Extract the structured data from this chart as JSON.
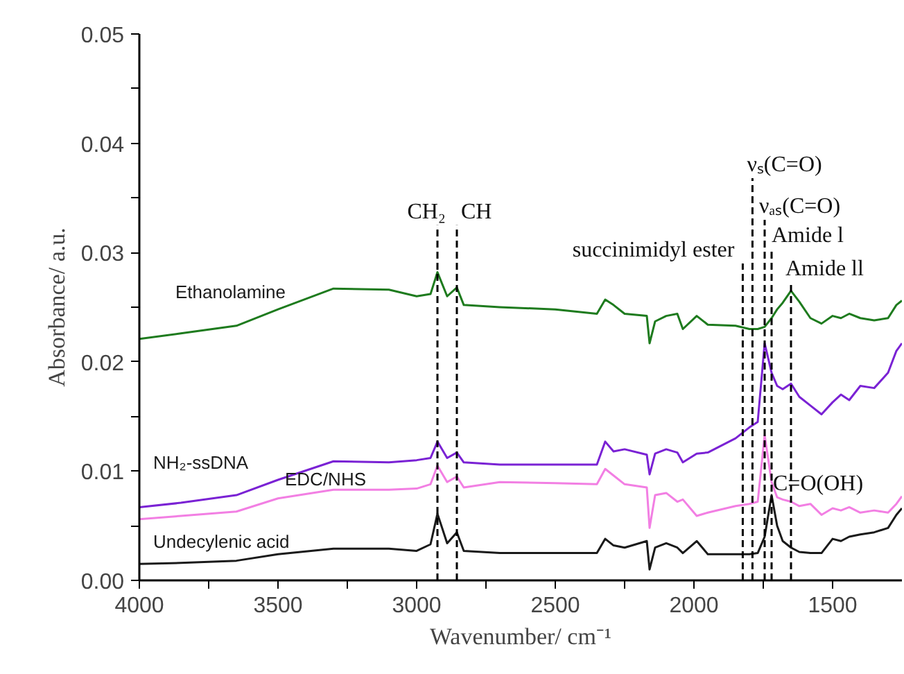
{
  "chart_data": {
    "type": "line",
    "xlabel": "Wavenumber/ cm⁻¹",
    "ylabel": "Absorbance/ a.u.",
    "x": [
      4000,
      3850,
      3650,
      3500,
      3300,
      3100,
      3000,
      2950,
      2925,
      2890,
      2855,
      2830,
      2700,
      2500,
      2350,
      2320,
      2290,
      2250,
      2170,
      2160,
      2140,
      2100,
      2060,
      2040,
      1990,
      1950,
      1850,
      1800,
      1770,
      1745,
      1720,
      1700,
      1680,
      1650,
      1620,
      1580,
      1540,
      1500,
      1470,
      1440,
      1400,
      1350,
      1300,
      1270,
      1250
    ],
    "series": [
      {
        "name": "Ethanolamine",
        "color": "#1e7b1e",
        "values": [
          0.0221,
          0.0226,
          0.0233,
          0.0248,
          0.0267,
          0.0266,
          0.026,
          0.0262,
          0.0282,
          0.026,
          0.0268,
          0.0252,
          0.025,
          0.0248,
          0.0244,
          0.0257,
          0.0252,
          0.0244,
          0.0242,
          0.0217,
          0.0237,
          0.0242,
          0.0244,
          0.023,
          0.0242,
          0.0234,
          0.0233,
          0.023,
          0.023,
          0.0232,
          0.024,
          0.0248,
          0.0254,
          0.0265,
          0.0255,
          0.024,
          0.0235,
          0.0242,
          0.024,
          0.0244,
          0.024,
          0.0238,
          0.024,
          0.0252,
          0.0256
        ]
      },
      {
        "name": "NH₂-ssDNA",
        "color": "#7a22d4",
        "values": [
          0.0067,
          0.0071,
          0.0078,
          0.0092,
          0.0109,
          0.0108,
          0.011,
          0.0112,
          0.0127,
          0.0112,
          0.0117,
          0.0108,
          0.0106,
          0.0106,
          0.0106,
          0.0127,
          0.0118,
          0.012,
          0.0115,
          0.0097,
          0.0116,
          0.012,
          0.0117,
          0.0108,
          0.0116,
          0.0117,
          0.013,
          0.014,
          0.0145,
          0.0217,
          0.019,
          0.0178,
          0.0175,
          0.018,
          0.0168,
          0.016,
          0.0152,
          0.0163,
          0.017,
          0.0165,
          0.0178,
          0.0176,
          0.019,
          0.021,
          0.0217
        ]
      },
      {
        "name": "EDC/NHS",
        "color": "#f27fe3",
        "values": [
          0.0056,
          0.0059,
          0.0063,
          0.0075,
          0.0083,
          0.0083,
          0.0084,
          0.0088,
          0.0105,
          0.009,
          0.0095,
          0.0085,
          0.009,
          0.0089,
          0.0088,
          0.0102,
          0.0096,
          0.0088,
          0.0085,
          0.0048,
          0.0078,
          0.008,
          0.0072,
          0.0074,
          0.0059,
          0.0062,
          0.0068,
          0.007,
          0.0072,
          0.0133,
          0.009,
          0.0076,
          0.0074,
          0.0072,
          0.0068,
          0.007,
          0.006,
          0.0066,
          0.0064,
          0.0067,
          0.0062,
          0.0064,
          0.0062,
          0.007,
          0.0077
        ]
      },
      {
        "name": "Undecylenic acid",
        "color": "#1a1a1a",
        "values": [
          0.0015,
          0.0016,
          0.0018,
          0.0024,
          0.0029,
          0.0029,
          0.0027,
          0.0033,
          0.0061,
          0.0034,
          0.0044,
          0.0027,
          0.0025,
          0.0025,
          0.0025,
          0.0038,
          0.0032,
          0.003,
          0.0036,
          0.001,
          0.003,
          0.0034,
          0.003,
          0.0025,
          0.0036,
          0.0024,
          0.0024,
          0.0024,
          0.0025,
          0.004,
          0.0078,
          0.005,
          0.0036,
          0.003,
          0.0026,
          0.0025,
          0.0025,
          0.0038,
          0.0036,
          0.004,
          0.0042,
          0.0044,
          0.0048,
          0.006,
          0.0066
        ]
      }
    ],
    "xlim": [
      4000,
      1250
    ],
    "xticks": [
      4000,
      {
        "value": 3750,
        "label": null
      },
      3500,
      {
        "value": 3250,
        "label": null
      },
      3000,
      {
        "value": 2750,
        "label": null
      },
      2500,
      {
        "value": 2250,
        "label": null
      },
      2000,
      {
        "value": 1750,
        "label": null
      },
      1500
    ],
    "ylim": [
      0,
      0.05
    ],
    "yticks": [
      {
        "value": 0,
        "label": "0.00"
      },
      {
        "value": 0.005,
        "label": null
      },
      {
        "value": 0.01,
        "label": "0.01"
      },
      {
        "value": 0.015,
        "label": null
      },
      {
        "value": 0.02,
        "label": "0.02"
      },
      {
        "value": 0.025,
        "label": null
      },
      {
        "value": 0.03,
        "label": "0.03"
      },
      {
        "value": 0.035,
        "label": null
      },
      {
        "value": 0.04,
        "label": "0.04"
      },
      {
        "value": 0.045,
        "label": null
      },
      {
        "value": 0.05,
        "label": "0.05"
      }
    ],
    "ref_lines": [
      {
        "axis": "x",
        "value": 2925,
        "color": "#000000",
        "line_style": "dashed"
      },
      {
        "axis": "x",
        "value": 2855,
        "color": "#000000",
        "line_style": "dashed"
      },
      {
        "axis": "x",
        "value": 1824,
        "color": "#000000",
        "line_style": "dashed"
      },
      {
        "axis": "x",
        "value": 1789,
        "color": "#000000",
        "line_style": "dashed"
      },
      {
        "axis": "x",
        "value": 1745,
        "color": "#000000",
        "line_style": "dashed"
      },
      {
        "axis": "x",
        "value": 1720,
        "color": "#000000",
        "line_style": "dashed"
      },
      {
        "axis": "x",
        "value": 1650,
        "color": "#000000",
        "line_style": "dashed"
      }
    ],
    "annotations": [
      {
        "text": "CH₂",
        "x": 2925,
        "y": 0.0325
      },
      {
        "text": "CH",
        "x": 2855,
        "y": 0.0325
      },
      {
        "text": "succinimidyl ester",
        "x": 1824,
        "y": 0.029
      },
      {
        "text": "νₛ(C=O)",
        "x": 1789,
        "y": 0.0368
      },
      {
        "text": "νₐₛ(C=O)",
        "x": 1745,
        "y": 0.033
      },
      {
        "text": "Amide l",
        "x": 1720,
        "y": 0.0303
      },
      {
        "text": "Amide ll",
        "x": 1650,
        "y": 0.0273
      },
      {
        "text": "C=O(OH)",
        "x": 1720,
        "y": 0.0076
      }
    ],
    "grid": false,
    "legend": false
  }
}
